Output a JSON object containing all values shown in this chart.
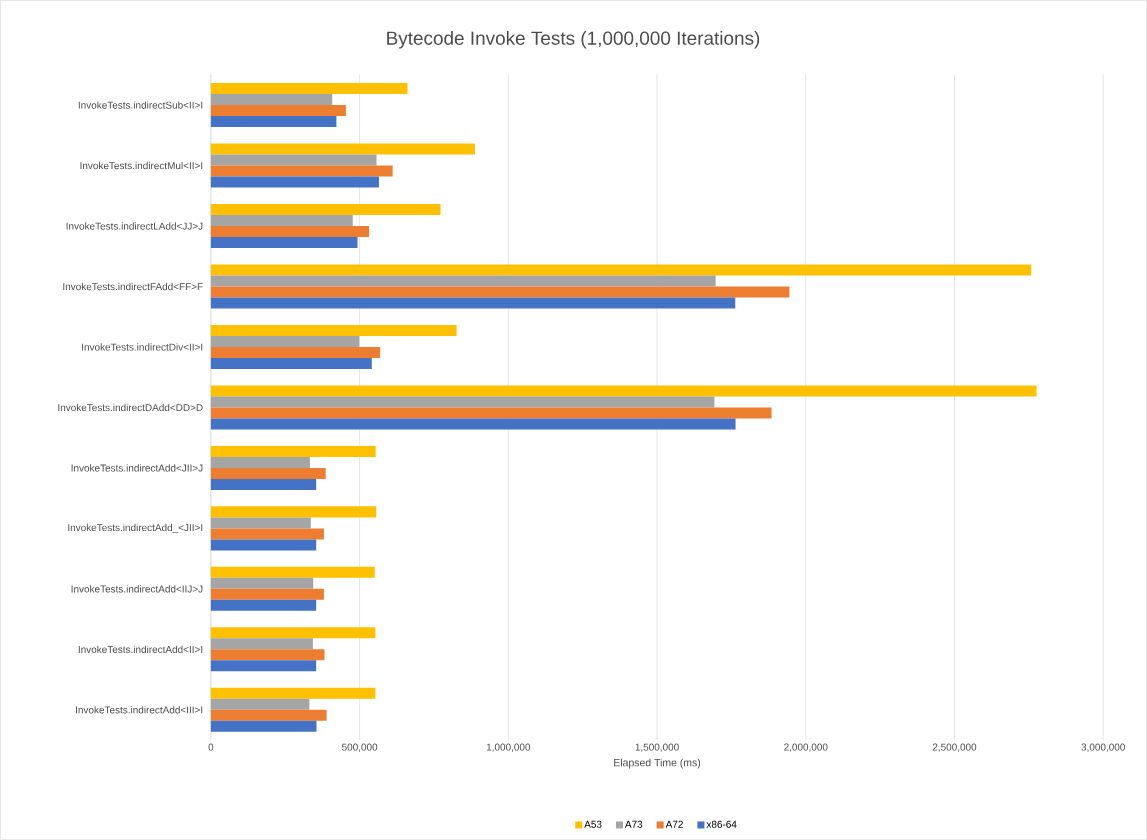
{
  "chart_data": {
    "type": "bar",
    "orientation": "horizontal",
    "title": "Bytecode Invoke Tests (1,000,000 Iterations)",
    "xlabel": "Elapsed Time (ms)",
    "categories": [
      "InvokeTests.indirectSub<II>I",
      "InvokeTests.indirectMul<II>I",
      "InvokeTests.indirectLAdd<JJ>J",
      "InvokeTests.indirectFAdd<FF>F",
      "InvokeTests.indirectDiv<II>I",
      "InvokeTests.indirectDAdd<DD>D",
      "InvokeTests.indirectAdd<JII>J",
      "InvokeTests.indirectAdd_<JII>I",
      "InvokeTests.indirectAdd<IIJ>J",
      "InvokeTests.indirectAdd<II>I",
      "InvokeTests.indirectAdd<III>I"
    ],
    "series": [
      {
        "name": "A53",
        "color": "#ffc000",
        "values": [
          661000,
          888000,
          772000,
          2758000,
          826000,
          2776000,
          554000,
          556000,
          551000,
          553000,
          553000
        ]
      },
      {
        "name": "A73",
        "color": "#a5a5a5",
        "values": [
          408000,
          557000,
          477000,
          1697000,
          499000,
          1693000,
          333000,
          336000,
          344000,
          343000,
          331000
        ]
      },
      {
        "name": "A72",
        "color": "#ed7d31",
        "values": [
          454000,
          611000,
          532000,
          1945000,
          569000,
          1885000,
          386000,
          380000,
          380000,
          382000,
          389000
        ]
      },
      {
        "name": "x86-64",
        "color": "#4472c4",
        "values": [
          422000,
          565000,
          493000,
          1763000,
          541000,
          1764000,
          354000,
          354000,
          354000,
          354000,
          355000
        ]
      }
    ],
    "xlim": [
      0,
      3000000
    ],
    "xticks": [
      0,
      {
        "value": 500000,
        "label": "500,000"
      },
      {
        "value": 1000000,
        "label": "1,000,000"
      },
      {
        "value": 1500000,
        "label": "1,500,000"
      },
      {
        "value": 2000000,
        "label": "2,000,000"
      },
      {
        "value": 2500000,
        "label": "2,500,000"
      },
      {
        "value": 3000000,
        "label": "3,000,000"
      }
    ],
    "grid": "x",
    "legend": "bottom"
  }
}
